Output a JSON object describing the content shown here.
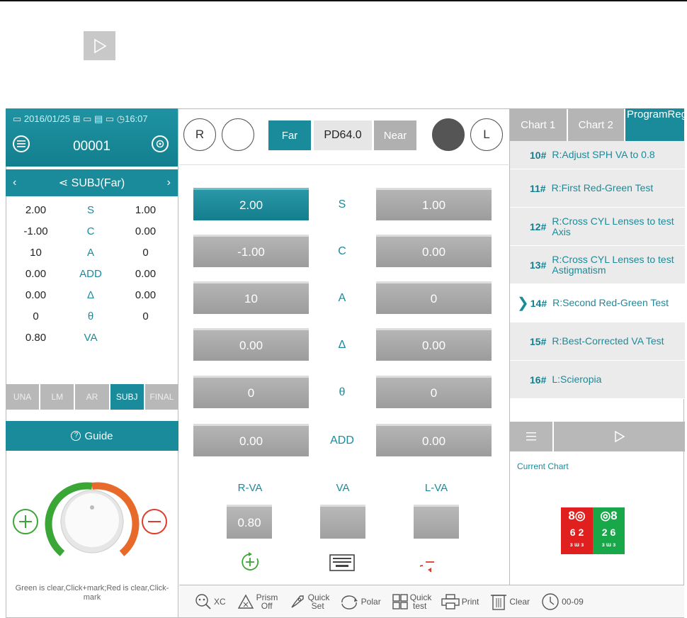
{
  "header": {
    "date": "▭ 2016/01/25 ⊞ ▭ ▤ ▭ ◷16:07",
    "patient_no": "00001"
  },
  "left": {
    "mode_title": "SUBJ(Far)",
    "rows": [
      {
        "r": "2.00",
        "label": "S",
        "l": "1.00"
      },
      {
        "r": "-1.00",
        "label": "C",
        "l": "0.00"
      },
      {
        "r": "10",
        "label": "A",
        "l": "0"
      },
      {
        "r": "0.00",
        "label": "ADD",
        "l": "0.00"
      },
      {
        "r": "0.00",
        "label": "Δ",
        "l": "0.00"
      },
      {
        "r": "0",
        "label": "θ",
        "l": "0"
      },
      {
        "r": "0.80",
        "label": "VA",
        "l": ""
      }
    ],
    "tabs": [
      "UNA",
      "LM",
      "AR",
      "SUBJ",
      "FINAL"
    ],
    "active_tab": "SUBJ",
    "guide_label": "Guide",
    "hint": "Green is clear,Click+mark;Red is clear,Click-mark"
  },
  "center": {
    "eye_r": "R",
    "eye_l": "L",
    "far": "Far",
    "pd": "PD64.0",
    "near": "Near",
    "rows": [
      {
        "r": "2.00",
        "label": "S",
        "l": "1.00"
      },
      {
        "r": "-1.00",
        "label": "C",
        "l": "0.00"
      },
      {
        "r": "10",
        "label": "A",
        "l": "0"
      },
      {
        "r": "0.00",
        "label": "Δ",
        "l": "0.00"
      },
      {
        "r": "0",
        "label": "θ",
        "l": "0"
      },
      {
        "r": "0.00",
        "label": "ADD",
        "l": "0.00"
      }
    ],
    "rva_label": "R-VA",
    "va_label": "VA",
    "lva_label": "L-VA",
    "rva_value": "0.80",
    "va_value": "",
    "lva_value": ""
  },
  "right": {
    "tabs": [
      "Chart 1",
      "Chart 2",
      "ProgramReg"
    ],
    "program": [
      {
        "num": "10#",
        "text": "R:Adjust SPH VA to 0.8"
      },
      {
        "num": "11#",
        "text": "R:First Red-Green Test"
      },
      {
        "num": "12#",
        "text": "R:Cross CYL Lenses to test Axis"
      },
      {
        "num": "13#",
        "text": "R:Cross CYL Lenses to test Astigmatism"
      },
      {
        "num": "14#",
        "text": "R:Second Red-Green Test"
      },
      {
        "num": "15#",
        "text": "R:Best-Corrected VA Test"
      },
      {
        "num": "16#",
        "text": "L:Scieropia"
      }
    ],
    "current_chart_label": "Current Chart",
    "chart_red": {
      "top": "8◎",
      "mid": "6 2",
      "bot": "ɜ ɯ ɜ"
    },
    "chart_green": {
      "top": "◎8",
      "mid": "2 6",
      "bot": "ɜ ɯ ɜ"
    }
  },
  "toolbar": {
    "xc": "XC",
    "prism": "Prism Off",
    "quickset": "Quick Set",
    "polar": "Polar",
    "quicktest": "Quick test",
    "print": "Print",
    "clear": "Clear",
    "timer": "00-09"
  },
  "colors": {
    "teal": "#1a8b9a",
    "grey": "#a8a8a8",
    "green": "#3aa635",
    "red": "#e03a2a"
  }
}
